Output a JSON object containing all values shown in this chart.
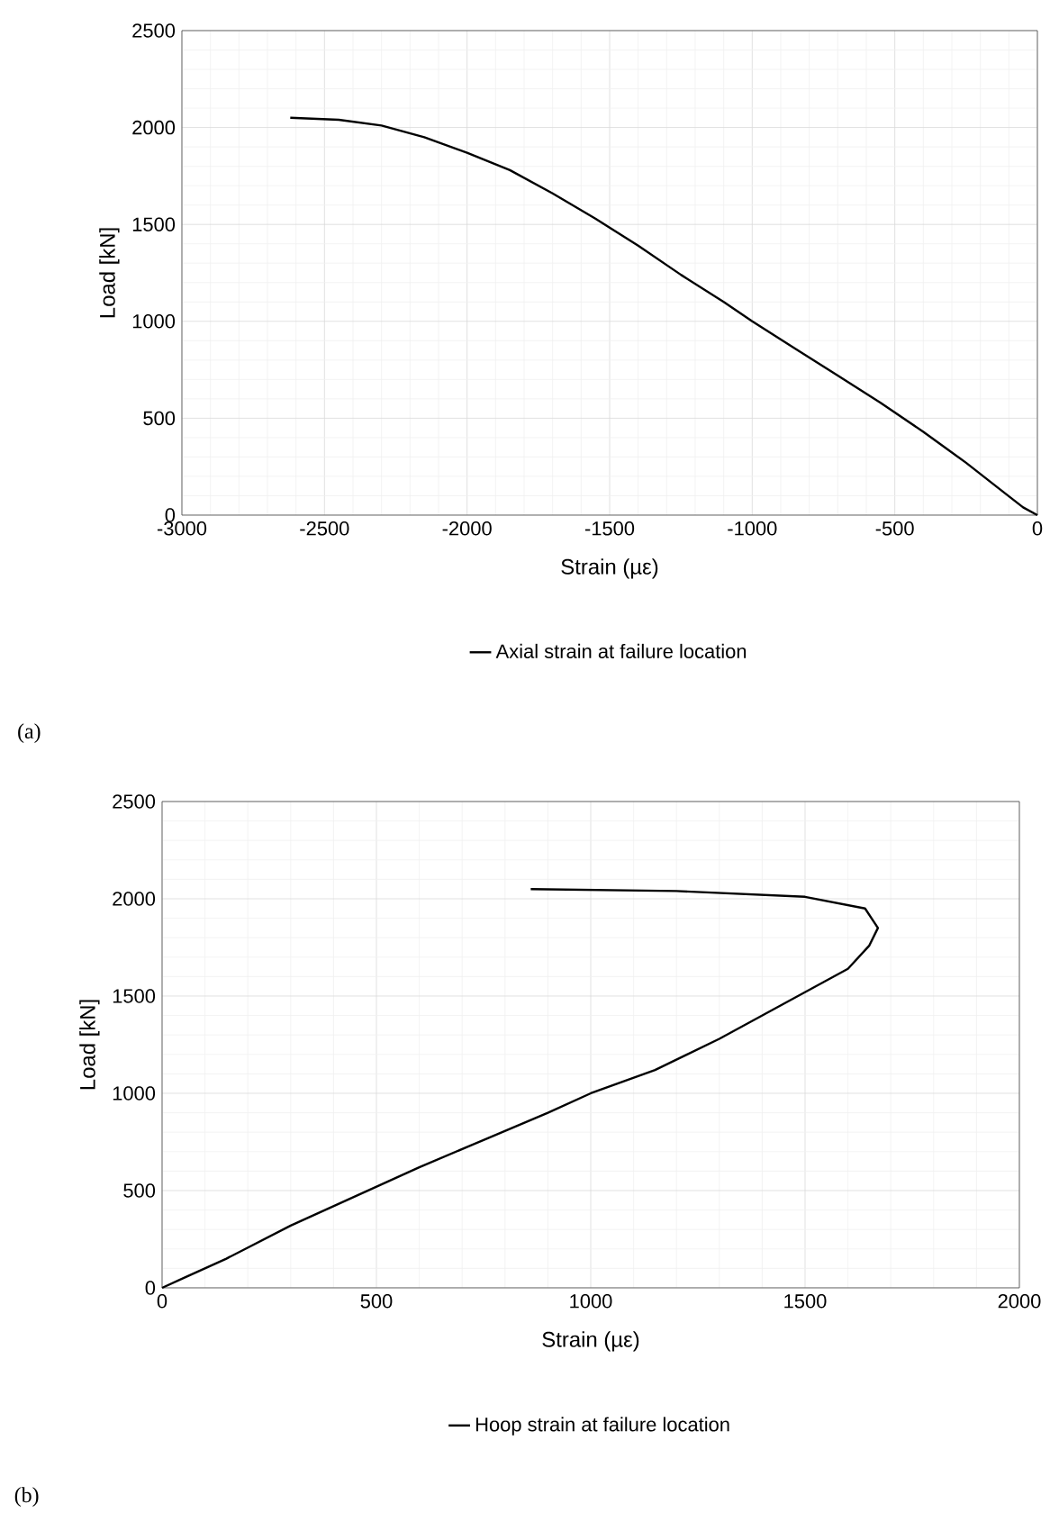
{
  "chart_data": [
    {
      "type": "line",
      "xlabel": "Strain (µε)",
      "ylabel": "Load [kN]",
      "xlim": [
        -3000,
        0
      ],
      "ylim": [
        0,
        2500
      ],
      "xticks": [
        -3000,
        -2500,
        -2000,
        -1500,
        -1000,
        -500,
        0
      ],
      "yticks": [
        0,
        500,
        1000,
        1500,
        2000,
        2500
      ],
      "grid": true,
      "legend": "bottom",
      "marker": "none",
      "line_style": "solid",
      "annotations": [
        "(a)"
      ],
      "series": [
        {
          "name": "Axial strain at failure location",
          "color": "#000000",
          "x": [
            -2620,
            -2450,
            -2300,
            -2150,
            -2000,
            -1850,
            -1700,
            -1550,
            -1400,
            -1250,
            -1100,
            -1000,
            -850,
            -700,
            -550,
            -400,
            -250,
            -120,
            -50,
            0
          ],
          "values": [
            2050,
            2040,
            2010,
            1950,
            1870,
            1780,
            1660,
            1530,
            1390,
            1240,
            1100,
            1000,
            860,
            720,
            580,
            430,
            270,
            120,
            40,
            0
          ]
        }
      ]
    },
    {
      "type": "line",
      "xlabel": "Strain (µε)",
      "ylabel": "Load [kN]",
      "xlim": [
        0,
        2000
      ],
      "ylim": [
        0,
        2500
      ],
      "xticks": [
        0,
        500,
        1000,
        1500,
        2000
      ],
      "yticks": [
        0,
        500,
        1000,
        1500,
        2000,
        2500
      ],
      "grid": true,
      "legend": "bottom",
      "marker": "none",
      "line_style": "solid",
      "annotations": [
        "(b)"
      ],
      "series": [
        {
          "name": "Hoop strain at failure location",
          "color": "#000000",
          "x": [
            0,
            50,
            150,
            300,
            450,
            600,
            750,
            900,
            1000,
            1150,
            1300,
            1400,
            1600,
            1650,
            1670,
            1640,
            1500,
            1200,
            860
          ],
          "values": [
            0,
            50,
            150,
            320,
            470,
            620,
            760,
            900,
            1000,
            1120,
            1280,
            1400,
            1640,
            1760,
            1850,
            1950,
            2010,
            2040,
            2050
          ]
        }
      ]
    }
  ]
}
